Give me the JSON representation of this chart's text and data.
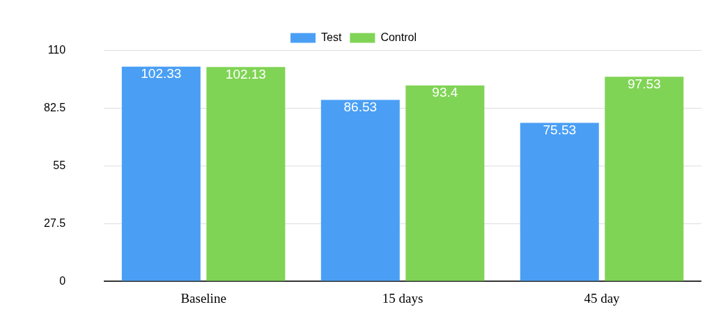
{
  "chart_data": {
    "type": "bar",
    "categories": [
      "Baseline",
      "15 days",
      "45 day"
    ],
    "series": [
      {
        "name": "Test",
        "color": "#4a9ff5",
        "values": [
          102.33,
          86.53,
          75.53
        ]
      },
      {
        "name": "Control",
        "color": "#80d455",
        "values": [
          102.13,
          93.4,
          97.53
        ]
      }
    ],
    "ylim": [
      0,
      110
    ],
    "yticks": [
      0,
      27.5,
      55,
      82.5,
      110
    ],
    "grid": "y",
    "legend": "top",
    "data_labels": true
  }
}
